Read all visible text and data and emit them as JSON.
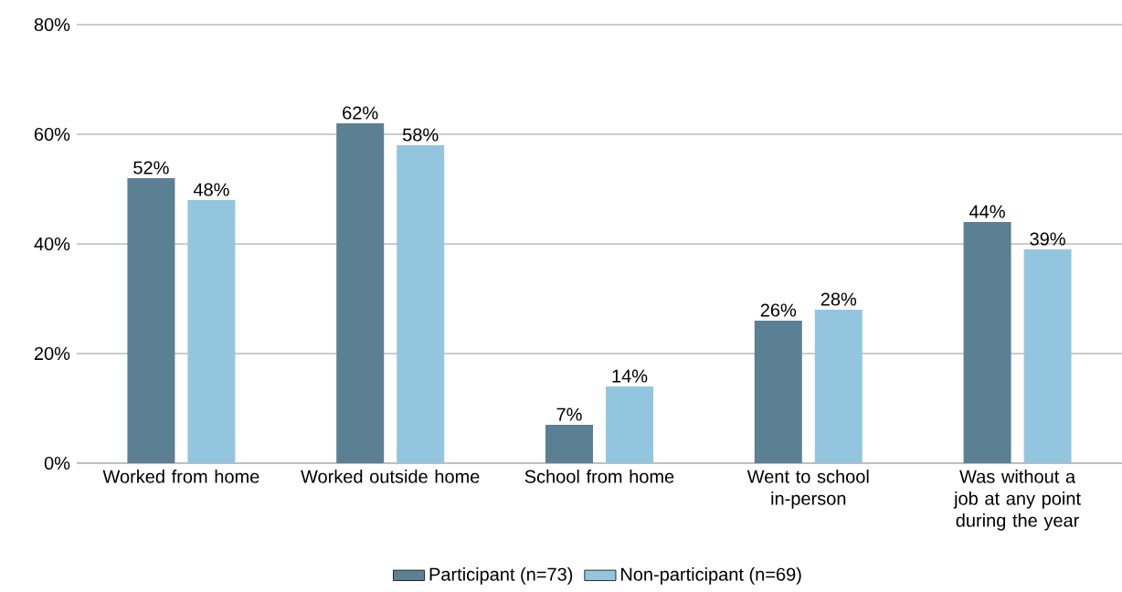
{
  "chart_data": {
    "type": "bar",
    "categories": [
      "Worked from home",
      "Worked outside home",
      "School from home",
      "Went to school in-person",
      "Was without a job at any point during the year"
    ],
    "series": [
      {
        "name": "Participant (n=73)",
        "color": "#5b7f93",
        "values": [
          52,
          62,
          7,
          26,
          44
        ],
        "value_labels": [
          "52%",
          "62%",
          "7%",
          "26%",
          "44%"
        ]
      },
      {
        "name": "Non-participant (n=69)",
        "color": "#93c6de",
        "values": [
          48,
          58,
          14,
          28,
          39
        ],
        "value_labels": [
          "48%",
          "58%",
          "14%",
          "28%",
          "39%"
        ]
      }
    ],
    "ylim": [
      0,
      80
    ],
    "yticks": [
      {
        "value": 0,
        "label": "0%"
      },
      {
        "value": 20,
        "label": "20%"
      },
      {
        "value": 40,
        "label": "40%"
      },
      {
        "value": 60,
        "label": "60%"
      },
      {
        "value": 80,
        "label": "80%"
      }
    ],
    "grid": "y",
    "legend": "bottom"
  }
}
